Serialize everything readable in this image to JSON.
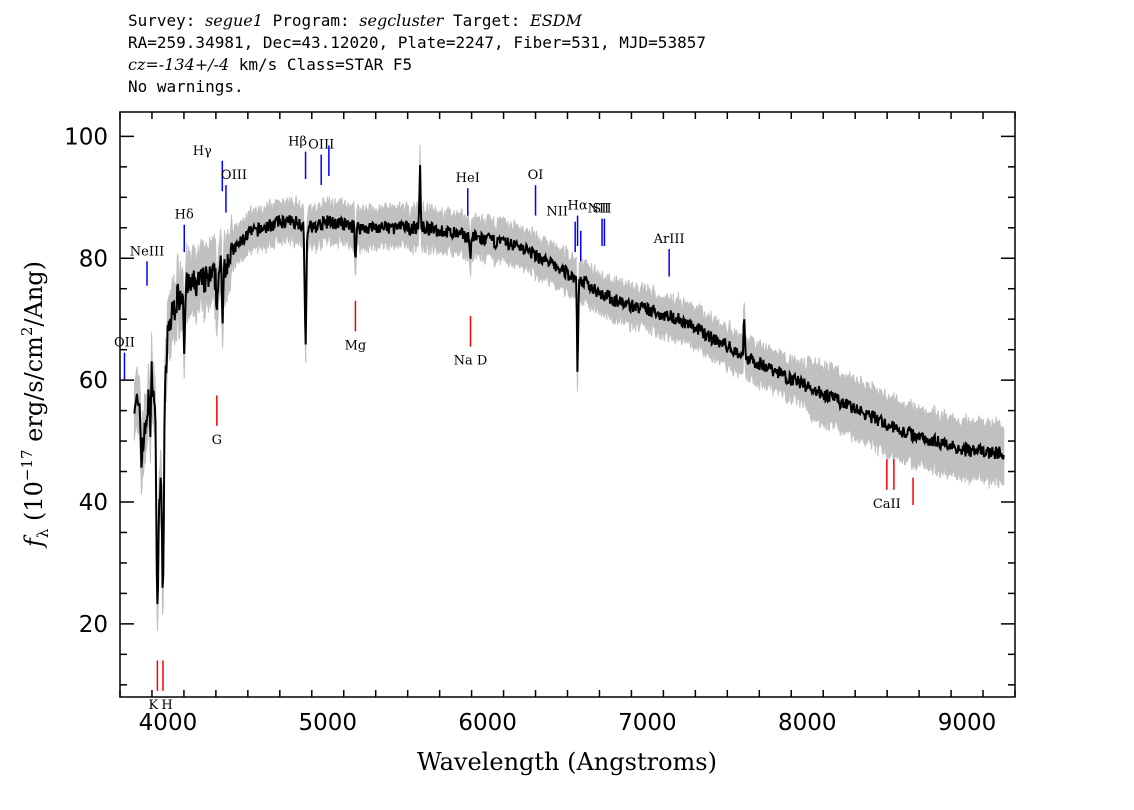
{
  "header": {
    "l1_a": "Survey: ",
    "survey": "segue1",
    "l1_b": " Program: ",
    "program": "segcluster",
    "l1_c": " Target: ",
    "target": "ESDM",
    "line2": "RA=259.34981, Dec=43.12020, Plate=2247, Fiber=531, MJD=53857",
    "cz": "cz=-134+/-4",
    "l3_b": " km/s Class=STAR F5",
    "line4": "No warnings."
  },
  "colors": {
    "flux": "#000000",
    "error": "#c0c0c0",
    "emission": "#0000ff",
    "absorption": "#ff0000"
  },
  "chart_data": {
    "type": "line",
    "xlabel": "Wavelength (Angstroms)",
    "ylabel": "f_λ (10^-17 erg/s/cm^2/Ang)",
    "xlim": [
      3700,
      9300
    ],
    "ylim": [
      8,
      104
    ],
    "xticks": [
      4000,
      5000,
      6000,
      7000,
      8000,
      9000
    ],
    "yticks": [
      20,
      40,
      60,
      80,
      100
    ],
    "continuum": [
      [
        3800,
        57
      ],
      [
        3850,
        50
      ],
      [
        3900,
        62
      ],
      [
        3950,
        40
      ],
      [
        4000,
        68
      ],
      [
        4050,
        73
      ],
      [
        4100,
        75
      ],
      [
        4200,
        76
      ],
      [
        4300,
        77
      ],
      [
        4400,
        81
      ],
      [
        4500,
        84
      ],
      [
        4600,
        85
      ],
      [
        4700,
        86
      ],
      [
        4800,
        86
      ],
      [
        4900,
        85
      ],
      [
        5000,
        86
      ],
      [
        5200,
        85
      ],
      [
        5400,
        85
      ],
      [
        5600,
        85
      ],
      [
        5800,
        84
      ],
      [
        6000,
        83
      ],
      [
        6200,
        82
      ],
      [
        6400,
        79
      ],
      [
        6600,
        76
      ],
      [
        6800,
        73
      ],
      [
        7000,
        71.5
      ],
      [
        7200,
        70
      ],
      [
        7400,
        67
      ],
      [
        7600,
        64
      ],
      [
        7800,
        61.5
      ],
      [
        8000,
        59
      ],
      [
        8200,
        56.5
      ],
      [
        8400,
        54
      ],
      [
        8600,
        51.5
      ],
      [
        8800,
        50
      ],
      [
        9000,
        48.5
      ],
      [
        9200,
        48
      ]
    ],
    "absorption_features": [
      {
        "wavelength": 3934,
        "depth": 25
      },
      {
        "wavelength": 3969,
        "depth": 25
      },
      {
        "wavelength": 3889,
        "depth": 8
      },
      {
        "wavelength": 3835,
        "depth": 6
      },
      {
        "wavelength": 4102,
        "depth": 9
      },
      {
        "wavelength": 4306,
        "depth": 6
      },
      {
        "wavelength": 4341,
        "depth": 10
      },
      {
        "wavelength": 4861,
        "depth": 19
      },
      {
        "wavelength": 5173,
        "depth": 5
      },
      {
        "wavelength": 5893,
        "depth": 4
      },
      {
        "wavelength": 6563,
        "depth": 15
      },
      {
        "wavelength": 7605,
        "depth": -6
      },
      {
        "wavelength": 5577,
        "depth": -10
      }
    ],
    "emission_lines": [
      {
        "label": "OII",
        "wavelength": 3728,
        "label_offset": 0,
        "y_top": 64.5,
        "y_bot": 60
      },
      {
        "label": "NeIII",
        "wavelength": 3869,
        "label_offset": 0,
        "y_top": 79.5,
        "y_bot": 75.5
      },
      {
        "label": "Hδ",
        "wavelength": 4102,
        "label_offset": 0,
        "y_top": 85.5,
        "y_bot": 81
      },
      {
        "label": "Hγ",
        "wavelength": 4340,
        "label_offset": -20,
        "y_top": 96,
        "y_bot": 91
      },
      {
        "label": "OIII",
        "wavelength": 4363,
        "label_offset": 8,
        "y_top": 92,
        "y_bot": 87.5
      },
      {
        "label": "Hβ",
        "wavelength": 4861,
        "label_offset": -8,
        "y_top": 97.5,
        "y_bot": 93
      },
      {
        "label": "OIII",
        "wavelength": 4959,
        "label_offset": 0,
        "y_top": 97,
        "y_bot": 92
      },
      {
        "label": "",
        "wavelength": 5007,
        "label_offset": 0,
        "y_top": 98.5,
        "y_bot": 93.5
      },
      {
        "label": "HeI",
        "wavelength": 5876,
        "label_offset": 0,
        "y_top": 91.5,
        "y_bot": 87
      },
      {
        "label": "OI",
        "wavelength": 6300,
        "label_offset": 0,
        "y_top": 92,
        "y_bot": 87
      },
      {
        "label": "NII",
        "wavelength": 6548,
        "label_offset": -18,
        "y_top": 86,
        "y_bot": 81
      },
      {
        "label": "Hα",
        "wavelength": 6563,
        "label_offset": 0,
        "y_top": 87,
        "y_bot": 82
      },
      {
        "label": "",
        "wavelength": 6583,
        "label_offset": 0,
        "y_top": 84.5,
        "y_bot": 79.5
      },
      {
        "label": "SII",
        "wavelength": 6716,
        "label_offset": 0,
        "y_top": 86.5,
        "y_bot": 82
      },
      {
        "label": "NII",
        "wavelength": 6731,
        "label_offset": -6,
        "y_top": 86.5,
        "y_bot": 82
      },
      {
        "label": "ArIII",
        "wavelength": 7136,
        "label_offset": 0,
        "y_top": 81.5,
        "y_bot": 77
      }
    ],
    "absorption_lines": [
      {
        "label": "K",
        "wavelength": 3934,
        "y_top": 14,
        "y_bot": 9
      },
      {
        "label": "H",
        "wavelength": 3969,
        "y_top": 14,
        "y_bot": 9
      },
      {
        "label": "G",
        "wavelength": 4306,
        "y_top": 57.5,
        "y_bot": 52.5
      },
      {
        "label": "Mg",
        "wavelength": 5173,
        "y_top": 73,
        "y_bot": 68
      },
      {
        "label": "Na D",
        "wavelength": 5893,
        "y_top": 70.5,
        "y_bot": 65.5
      },
      {
        "label": "CaII",
        "wavelength": 8498,
        "y_top": 47,
        "y_bot": 42
      },
      {
        "label": "",
        "wavelength": 8542,
        "y_top": 47,
        "y_bot": 42
      },
      {
        "label": "",
        "wavelength": 8662,
        "y_top": 44,
        "y_bot": 39.5
      }
    ]
  }
}
